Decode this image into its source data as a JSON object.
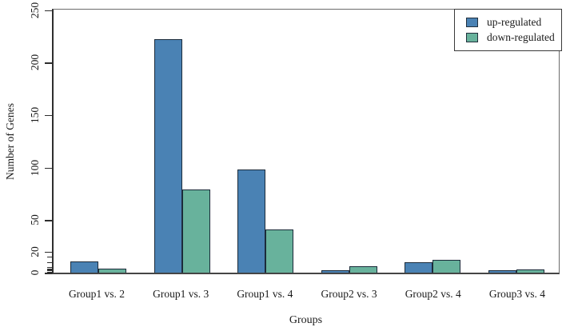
{
  "chart_data": {
    "type": "bar",
    "title": "",
    "xlabel": "Groups",
    "ylabel": "Number of Genes",
    "categories": [
      "Group1 vs. 2",
      "Group1 vs. 3",
      "Group1 vs. 4",
      "Group2 vs. 3",
      "Group2 vs. 4",
      "Group3 vs. 4"
    ],
    "series": [
      {
        "name": "up-regulated",
        "color": "#4a82b4",
        "border_color": "#1c2b3a",
        "values": [
          11,
          222,
          98,
          2,
          10,
          2
        ]
      },
      {
        "name": "down-regulated",
        "color": "#68b29c",
        "border_color": "#1c2b3a",
        "values": [
          4,
          79,
          41,
          6,
          12,
          3
        ]
      }
    ],
    "ylim": [
      0,
      250
    ],
    "y_major_ticks": [
      0,
      20,
      50,
      100,
      150,
      200,
      250
    ],
    "y_minor_ticks": [
      1,
      2,
      3,
      4,
      5,
      10,
      15
    ],
    "grid": false,
    "legend_position": "top-right",
    "frame_color": "#6b6b6b",
    "axis_color": "#2e2e2e",
    "text_color": "#1a1a1a",
    "background": "#ffffff"
  }
}
